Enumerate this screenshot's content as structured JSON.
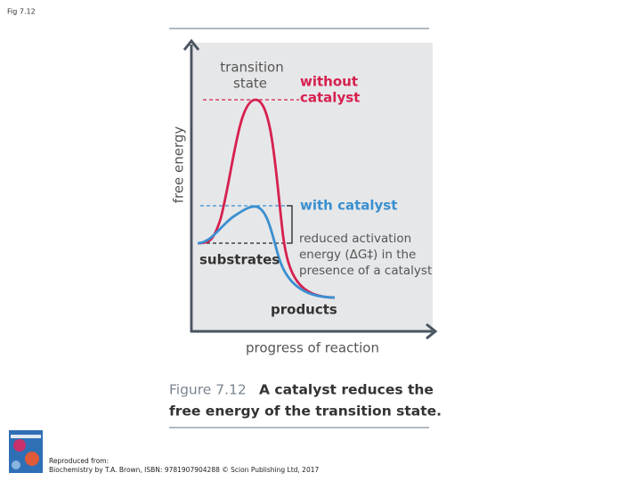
{
  "header": {
    "label": "Fig 7.12"
  },
  "diagram": {
    "y_axis_label": "free energy",
    "x_axis_label": "progress of reaction",
    "transition_state": [
      "transition",
      "state"
    ],
    "without_catalyst": [
      "without",
      "catalyst"
    ],
    "with_catalyst": "with catalyst",
    "substrates": "substrates",
    "products": "products",
    "reduced_energy": [
      "reduced activation",
      "energy (ΔG‡) in the",
      "presence of a catalyst"
    ]
  },
  "caption": {
    "number": "Figure 7.12",
    "lines": [
      "A catalyst reduces the",
      "free energy of the transition state."
    ]
  },
  "credit": {
    "lines": [
      "Reproduced from:",
      "Biochemistry by T.A. Brown, ISBN: 9781907904288 © Scion Publishing Ltd, 2017"
    ]
  }
}
